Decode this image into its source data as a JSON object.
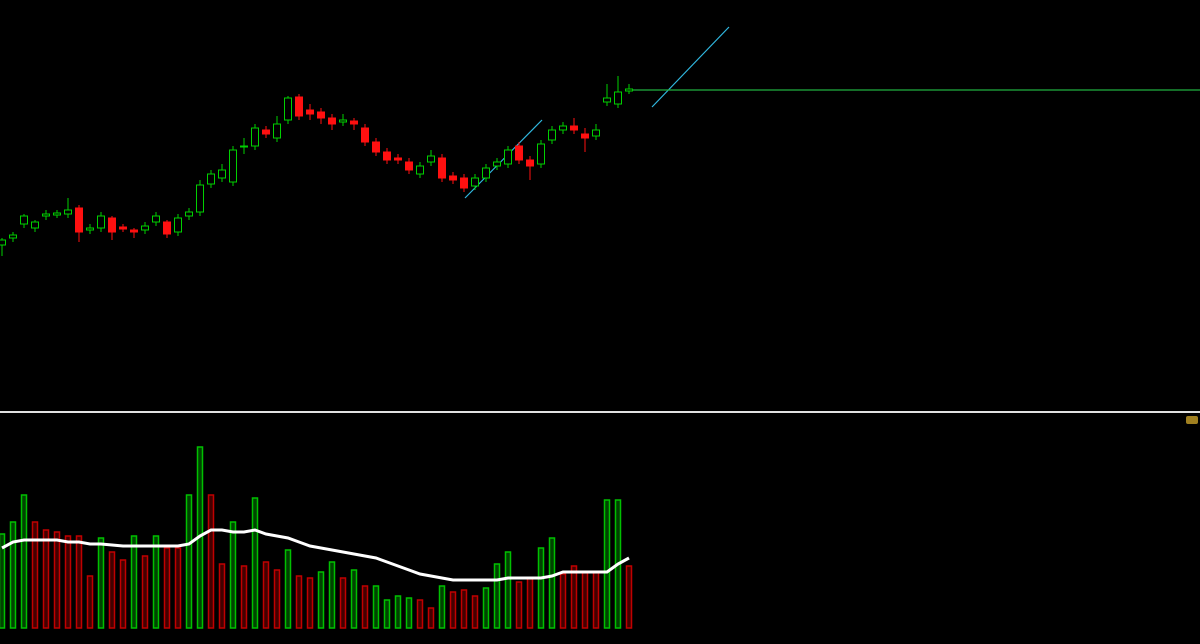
{
  "chart_data": [
    {
      "type": "candlestick",
      "ylim": [
        0,
        410
      ],
      "up_color": "#00d000",
      "down_color": "#ff1010",
      "open": [
        165,
        172,
        186,
        182,
        194,
        195,
        196,
        202,
        180,
        182,
        192,
        183,
        180,
        180,
        188,
        188,
        178,
        194,
        198,
        226,
        232,
        228,
        263,
        264,
        280,
        272,
        290,
        313,
        300,
        298,
        292,
        288,
        289,
        282,
        268,
        258,
        252,
        248,
        236,
        248,
        252,
        234,
        232,
        224,
        232,
        244,
        246,
        264,
        250,
        246,
        270,
        280,
        284,
        276,
        274,
        308,
        306,
        319
      ],
      "high": [
        172,
        178,
        196,
        190,
        200,
        200,
        212,
        205,
        186,
        198,
        194,
        186,
        182,
        188,
        198,
        190,
        196,
        202,
        230,
        240,
        246,
        264,
        272,
        286,
        284,
        294,
        314,
        316,
        306,
        302,
        296,
        296,
        292,
        286,
        272,
        262,
        256,
        252,
        248,
        260,
        256,
        238,
        236,
        236,
        246,
        252,
        264,
        268,
        254,
        270,
        284,
        288,
        292,
        282,
        286,
        326,
        334,
        326
      ],
      "low": [
        154,
        168,
        182,
        178,
        190,
        192,
        192,
        168,
        176,
        178,
        170,
        178,
        172,
        176,
        184,
        172,
        174,
        190,
        194,
        222,
        228,
        224,
        256,
        260,
        272,
        268,
        286,
        290,
        290,
        286,
        280,
        284,
        280,
        264,
        254,
        246,
        246,
        236,
        232,
        244,
        228,
        226,
        218,
        220,
        228,
        240,
        242,
        246,
        230,
        242,
        266,
        276,
        276,
        258,
        270,
        304,
        302,
        316
      ],
      "close": [
        170,
        175,
        194,
        188,
        196,
        197,
        200,
        178,
        182,
        194,
        178,
        181,
        178,
        184,
        194,
        176,
        192,
        198,
        225,
        236,
        240,
        260,
        264,
        282,
        276,
        286,
        312,
        294,
        296,
        292,
        286,
        290,
        286,
        268,
        258,
        250,
        250,
        240,
        244,
        254,
        232,
        230,
        222,
        232,
        242,
        248,
        260,
        250,
        244,
        266,
        280,
        284,
        280,
        272,
        280,
        312,
        318,
        321
      ]
    },
    {
      "type": "bar",
      "ylim": [
        0,
        216
      ],
      "values": [
        94,
        106,
        133,
        106,
        98,
        96,
        92,
        92,
        52,
        90,
        76,
        68,
        92,
        72,
        92,
        80,
        80,
        133,
        181,
        133,
        64,
        106,
        62,
        130,
        66,
        58,
        78,
        52,
        50,
        56,
        66,
        50,
        58,
        42,
        42,
        28,
        32,
        30,
        28,
        20,
        42,
        36,
        38,
        32,
        40,
        64,
        76,
        46,
        50,
        80,
        90,
        54,
        62,
        56,
        56,
        128,
        128,
        62
      ],
      "colors": [
        "#00c000",
        "#00c000",
        "#00c000",
        "#c00000",
        "#c00000",
        "#c00000",
        "#c00000",
        "#c00000",
        "#c00000",
        "#00c000",
        "#c00000",
        "#c00000",
        "#00c000",
        "#c00000",
        "#00c000",
        "#c00000",
        "#c00000",
        "#00c000",
        "#00c000",
        "#c00000",
        "#c00000",
        "#00c000",
        "#c00000",
        "#00c000",
        "#c00000",
        "#c00000",
        "#00c000",
        "#c00000",
        "#c00000",
        "#00c000",
        "#00c000",
        "#c00000",
        "#00c000",
        "#c00000",
        "#00c000",
        "#00c000",
        "#00c000",
        "#00c000",
        "#c00000",
        "#c00000",
        "#00c000",
        "#c00000",
        "#c00000",
        "#c00000",
        "#00c000",
        "#00c000",
        "#00c000",
        "#c00000",
        "#c00000",
        "#00c000",
        "#00c000",
        "#c00000",
        "#c00000",
        "#c00000",
        "#c00000",
        "#00c000",
        "#00c000",
        "#c00000"
      ],
      "line": {
        "color": "#ffffff",
        "values": [
          80,
          86,
          88,
          88,
          88,
          88,
          86,
          86,
          84,
          84,
          83,
          82,
          82,
          82,
          82,
          82,
          82,
          84,
          92,
          98,
          98,
          96,
          96,
          98,
          94,
          92,
          90,
          86,
          82,
          80,
          78,
          76,
          74,
          72,
          70,
          66,
          62,
          58,
          54,
          52,
          50,
          48,
          48,
          48,
          48,
          48,
          50,
          50,
          50,
          50,
          52,
          56,
          56,
          56,
          56,
          56,
          64,
          70
        ]
      }
    }
  ]
}
